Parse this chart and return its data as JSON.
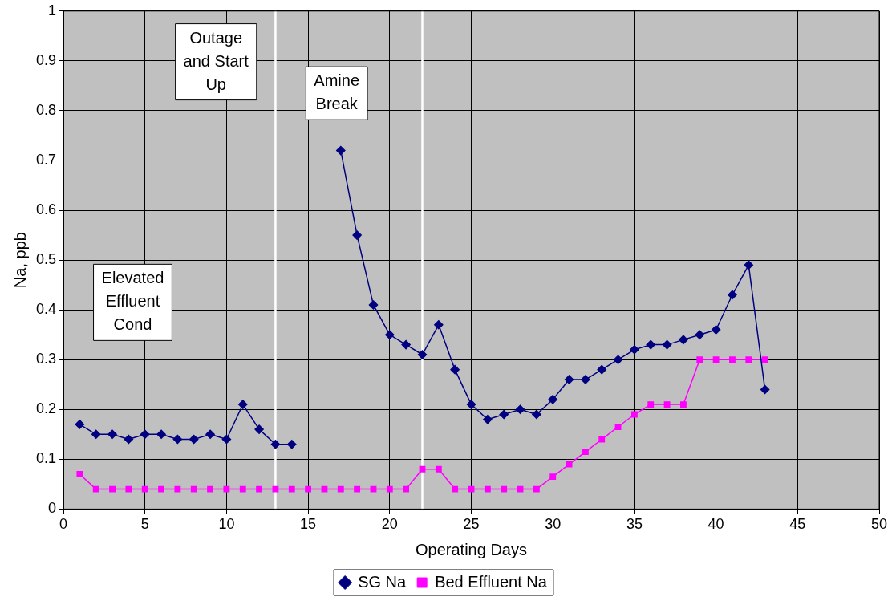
{
  "chart_data": {
    "type": "line",
    "xlabel": "Operating Days",
    "ylabel": "Na, ppb",
    "xlim": [
      0,
      50
    ],
    "xticks": [
      0,
      5,
      10,
      15,
      20,
      25,
      30,
      35,
      40,
      45,
      50
    ],
    "ylim": [
      0,
      1
    ],
    "yticks": [
      0,
      0.1,
      0.2,
      0.3,
      0.4,
      0.5,
      0.6,
      0.7,
      0.8,
      0.9,
      1
    ],
    "grid": true,
    "legend": "bottom",
    "series": [
      {
        "name": "SG Na",
        "color": "#000080",
        "marker": "diamond",
        "x": [
          1,
          2,
          3,
          4,
          5,
          6,
          7,
          8,
          9,
          10,
          11,
          12,
          13,
          14,
          15,
          16,
          17,
          18,
          19,
          20,
          21,
          22,
          23,
          24,
          25,
          26,
          27,
          28,
          29,
          30,
          31,
          32,
          33,
          34,
          35,
          36,
          37,
          38,
          39,
          40,
          41,
          42,
          43
        ],
        "values": [
          0.17,
          0.15,
          0.15,
          0.14,
          0.15,
          0.15,
          0.14,
          0.14,
          0.15,
          0.14,
          0.21,
          0.16,
          0.13,
          0.13,
          null,
          null,
          0.72,
          0.55,
          0.41,
          0.35,
          0.33,
          0.31,
          0.37,
          0.28,
          0.21,
          0.18,
          0.19,
          0.2,
          0.19,
          0.22,
          0.26,
          0.26,
          0.28,
          0.3,
          0.32,
          0.33,
          0.33,
          0.34,
          0.35,
          0.36,
          0.43,
          0.49,
          0.24
        ]
      },
      {
        "name": "Bed Effluent Na",
        "color": "#ff00ff",
        "marker": "square",
        "x": [
          1,
          2,
          3,
          4,
          5,
          6,
          7,
          8,
          9,
          10,
          11,
          12,
          13,
          14,
          15,
          16,
          17,
          18,
          19,
          20,
          21,
          22,
          23,
          24,
          25,
          26,
          27,
          28,
          29,
          30,
          31,
          32,
          33,
          34,
          35,
          36,
          37,
          38,
          39,
          40,
          41,
          42,
          43
        ],
        "values": [
          0.07,
          0.04,
          0.04,
          0.04,
          0.04,
          0.04,
          0.04,
          0.04,
          0.04,
          0.04,
          0.04,
          0.04,
          0.04,
          0.04,
          0.04,
          0.04,
          0.04,
          0.04,
          0.04,
          0.04,
          0.04,
          0.08,
          0.08,
          0.04,
          0.04,
          0.04,
          0.04,
          0.04,
          0.04,
          0.065,
          0.09,
          0.115,
          0.14,
          0.165,
          0.19,
          0.21,
          0.21,
          0.21,
          0.3,
          0.3,
          0.3,
          0.3,
          0.3
        ]
      }
    ],
    "ref_lines": [
      {
        "axis": "x",
        "value": 13,
        "color": "#ffffff"
      },
      {
        "axis": "x",
        "value": 22,
        "color": "#ffffff"
      }
    ],
    "annotations": [
      "Outage\nand Start\nUp",
      "Amine\nBreak",
      "Elevated\nEffluent\nCond"
    ]
  }
}
